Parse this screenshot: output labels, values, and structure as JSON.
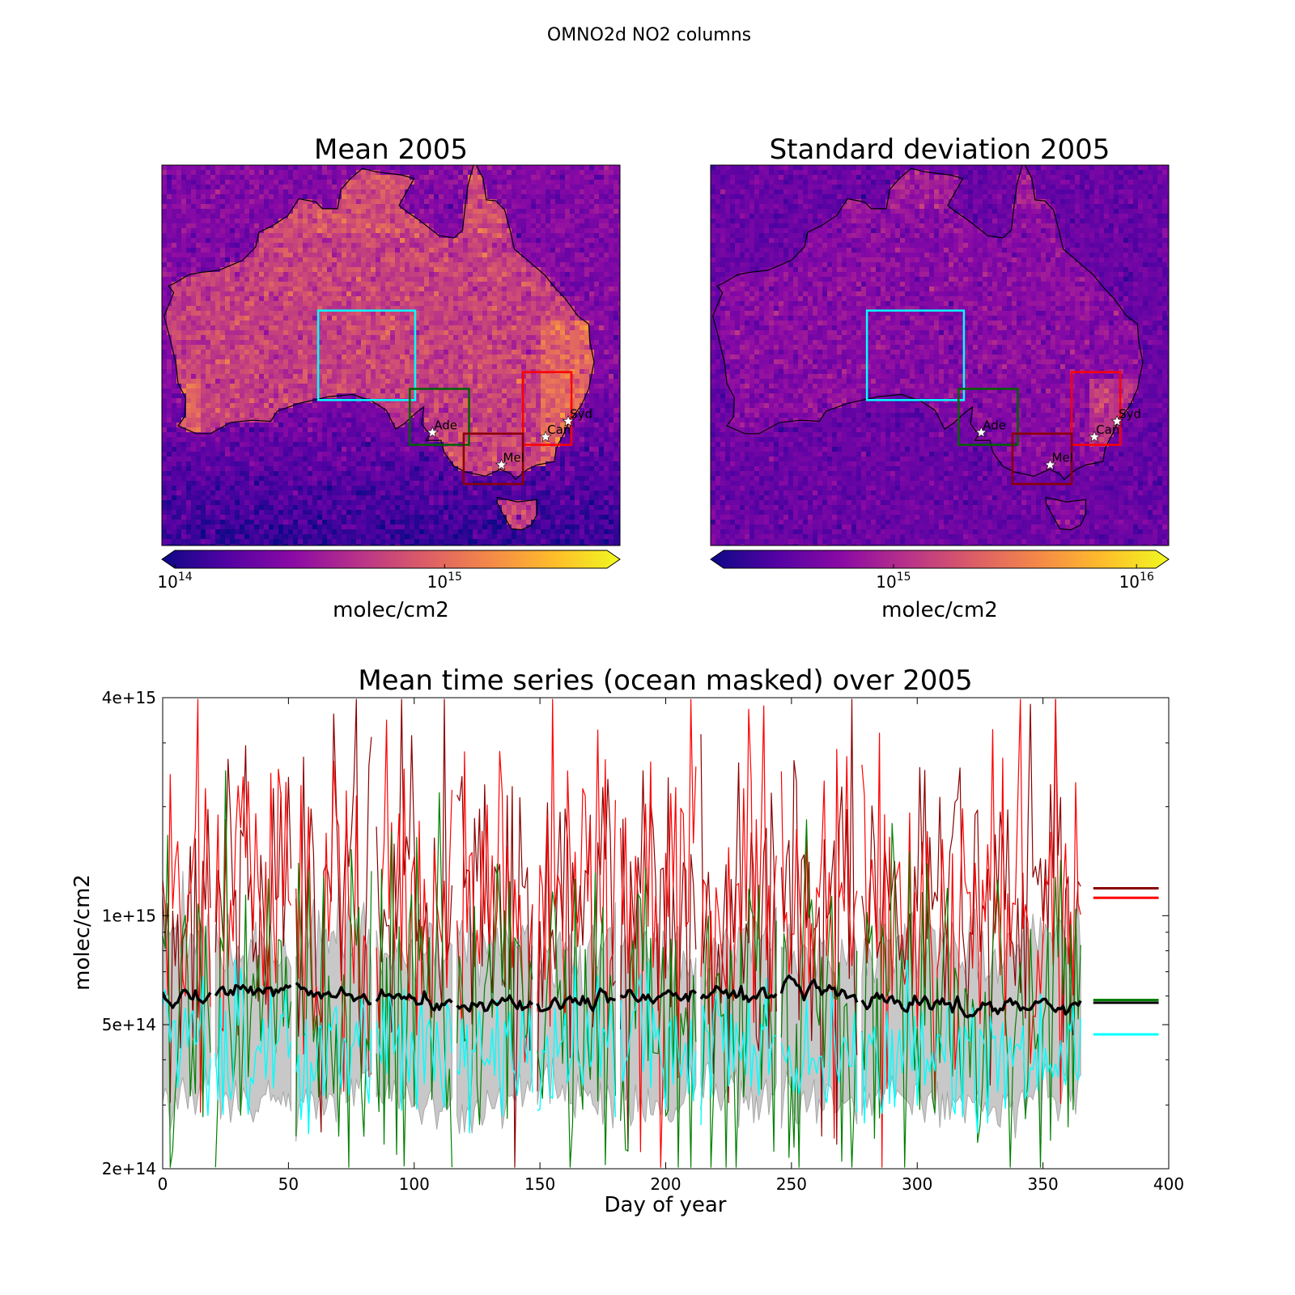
{
  "suptitle": "OMNO2d NO2 columns",
  "maps": [
    {
      "title": "Mean 2005",
      "colorbar_label": "molec/cm2",
      "colorbar_ticks": [
        {
          "base": "10",
          "exp": "14",
          "value": 100000000000000.0
        },
        {
          "base": "10",
          "exp": "15",
          "value": 1000000000000000.0
        }
      ],
      "colorbar_range": [
        100000000000000.0,
        4000000000000000.0
      ],
      "colormap": [
        "#0d0887",
        "#5302a3",
        "#8b0aa5",
        "#b83289",
        "#db5c68",
        "#f48849",
        "#febd2a",
        "#f0f921"
      ],
      "background_color": "#3a0f8f",
      "land_color": "#8e3aa0",
      "cities": [
        {
          "label": "Ade",
          "lon": 138.6,
          "lat": -34.9
        },
        {
          "label": "Can",
          "lon": 149.1,
          "lat": -35.3
        },
        {
          "label": "Syd",
          "lon": 151.2,
          "lat": -33.9
        },
        {
          "label": "Mel",
          "lon": 145.0,
          "lat": -37.8
        }
      ]
    },
    {
      "title": "Standard deviation 2005",
      "colorbar_label": "molec/cm2",
      "colorbar_ticks": [
        {
          "base": "10",
          "exp": "15",
          "value": 1000000000000000.0
        },
        {
          "base": "10",
          "exp": "16",
          "value": 1e+16
        }
      ],
      "colorbar_range": [
        200000000000000.0,
        1.2e+16
      ],
      "colormap": [
        "#0d0887",
        "#5302a3",
        "#8b0aa5",
        "#b83289",
        "#db5c68",
        "#f48849",
        "#febd2a",
        "#f0f921"
      ],
      "background_color": "#3d0c95",
      "land_color": "#5a18a0",
      "cities": [
        {
          "label": "Ade",
          "lon": 138.6,
          "lat": -34.9
        },
        {
          "label": "Can",
          "lon": 149.1,
          "lat": -35.3
        },
        {
          "label": "Syd",
          "lon": 151.2,
          "lat": -33.9
        },
        {
          "label": "Mel",
          "lon": 145.0,
          "lat": -37.8
        }
      ]
    }
  ],
  "regions": [
    {
      "color": "#00ffff",
      "lon": [
        128.0,
        137.0
      ],
      "lat": [
        -32.0,
        -24.0
      ]
    },
    {
      "color": "#006400",
      "lon": [
        136.5,
        142.0
      ],
      "lat": [
        -36.0,
        -31.0
      ]
    },
    {
      "color": "#ff0000",
      "lon": [
        147.0,
        151.5
      ],
      "lat": [
        -36.0,
        -29.5
      ]
    },
    {
      "color": "#8b0000",
      "lon": [
        141.5,
        147.0
      ],
      "lat": [
        -39.5,
        -35.0
      ]
    }
  ],
  "map_extent": {
    "lon": [
      113.5,
      156.0
    ],
    "lat": [
      -45.0,
      -11.0
    ]
  },
  "chart_data": {
    "type": "line",
    "title": "Mean time series (ocean masked) over 2005",
    "xlabel": "Day of year",
    "ylabel": "molec/cm2",
    "xlim": [
      0,
      400
    ],
    "ylim": [
      200000000000000.0,
      4000000000000000.0
    ],
    "yscale": "log",
    "xticks": [
      "0",
      "50",
      "100",
      "150",
      "200",
      "250",
      "300",
      "350",
      "400"
    ],
    "yticks": [
      {
        "label": "4e+15",
        "value": 4000000000000000.0
      },
      {
        "label": "1e+15",
        "value": 1000000000000000.0
      },
      {
        "label": "5e+14",
        "value": 500000000000000.0
      },
      {
        "label": "2e+14",
        "value": 200000000000000.0
      }
    ],
    "grid": false,
    "legend": "none",
    "gaps": [
      20,
      52,
      84,
      116,
      148,
      181,
      213,
      245,
      277
    ],
    "series": [
      {
        "color": "#8b0000",
        "mean": 1120000000000000.0,
        "spread": 0.55,
        "mean_line": 1190000000000000.0,
        "width": 1.2
      },
      {
        "color": "#ff0000",
        "mean": 1050000000000000.0,
        "spread": 0.55,
        "mean_line": 1120000000000000.0,
        "width": 1.2
      },
      {
        "color": "#008000",
        "mean": 560000000000000.0,
        "spread": 0.6,
        "mean_line": 585000000000000.0,
        "width": 1.2
      },
      {
        "color": "#00ffff",
        "mean": 430000000000000.0,
        "spread": 0.22,
        "mean_line": 470000000000000.0,
        "width": 1.4
      },
      {
        "color": "#000000",
        "mean": 590000000000000.0,
        "spread": 0.06,
        "mean_line": 575000000000000.0,
        "width": 3.5
      }
    ],
    "band": {
      "color": "#c8c8c8",
      "lower": 310000000000000.0,
      "upper": 820000000000000.0
    }
  }
}
